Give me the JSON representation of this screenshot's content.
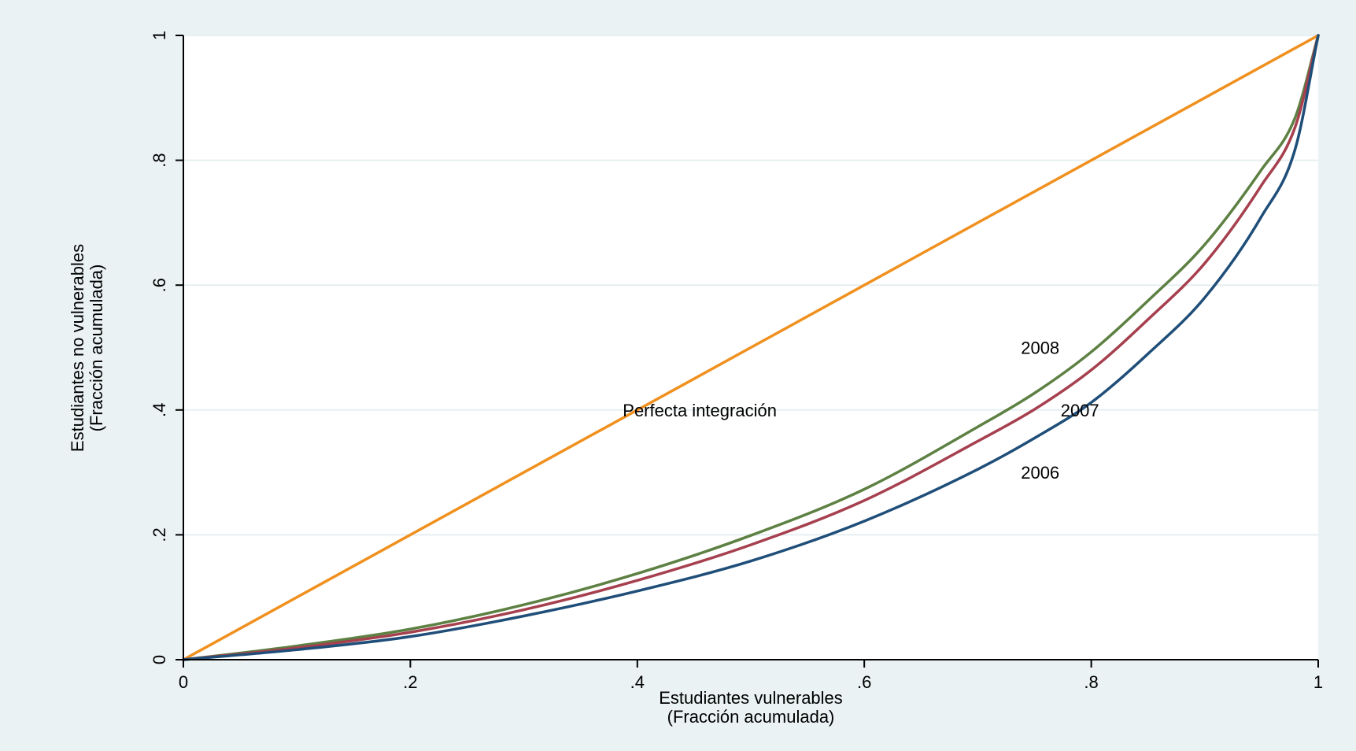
{
  "chart_data": {
    "type": "line",
    "xlabel": [
      "Estudiantes vulnerables",
      "(Fracción acumulada)"
    ],
    "ylabel": [
      "Estudiantes no vulnerables",
      "(Fracción acumulada)"
    ],
    "xlim": [
      0,
      1
    ],
    "ylim": [
      0,
      1
    ],
    "x_ticks": [
      {
        "value": 0,
        "label": "0"
      },
      {
        "value": 0.2,
        "label": ".2"
      },
      {
        "value": 0.4,
        "label": ".4"
      },
      {
        "value": 0.6,
        "label": ".6"
      },
      {
        "value": 0.8,
        "label": ".8"
      },
      {
        "value": 1,
        "label": "1"
      }
    ],
    "y_ticks": [
      {
        "value": 0,
        "label": "0"
      },
      {
        "value": 0.2,
        "label": ".2"
      },
      {
        "value": 0.4,
        "label": ".4"
      },
      {
        "value": 0.6,
        "label": ".6"
      },
      {
        "value": 0.8,
        "label": ".8"
      },
      {
        "value": 1,
        "label": "1"
      }
    ],
    "grid": "horizontal",
    "colors": {
      "background": "#eaf2f3",
      "plot_background": "#ffffff",
      "grid": "#e6eff1",
      "perfect": "#f0901e",
      "2008": "#5d8043",
      "2007": "#a6404f",
      "2006": "#1f4e79"
    },
    "series": [
      {
        "name": "Perfecta integración",
        "color_key": "perfect",
        "x": [
          0,
          1
        ],
        "y": [
          0,
          1
        ]
      },
      {
        "name": "2008",
        "color_key": "2008",
        "x": [
          0,
          0.1,
          0.2,
          0.3,
          0.4,
          0.5,
          0.6,
          0.7,
          0.75,
          0.8,
          0.85,
          0.9,
          0.95,
          0.98,
          1.0
        ],
        "y": [
          0,
          0.022,
          0.049,
          0.088,
          0.138,
          0.199,
          0.273,
          0.373,
          0.427,
          0.493,
          0.575,
          0.665,
          0.785,
          0.87,
          1.0
        ]
      },
      {
        "name": "2007",
        "color_key": "2007",
        "x": [
          0,
          0.1,
          0.2,
          0.3,
          0.4,
          0.5,
          0.6,
          0.7,
          0.75,
          0.8,
          0.85,
          0.9,
          0.95,
          0.98,
          1.0
        ],
        "y": [
          0,
          0.019,
          0.044,
          0.08,
          0.127,
          0.184,
          0.255,
          0.35,
          0.401,
          0.464,
          0.545,
          0.635,
          0.76,
          0.855,
          1.0
        ]
      },
      {
        "name": "2006",
        "color_key": "2006",
        "x": [
          0,
          0.1,
          0.2,
          0.3,
          0.4,
          0.5,
          0.6,
          0.7,
          0.75,
          0.8,
          0.85,
          0.9,
          0.95,
          0.98,
          1.0
        ],
        "y": [
          0,
          0.016,
          0.037,
          0.07,
          0.11,
          0.158,
          0.222,
          0.305,
          0.355,
          0.412,
          0.49,
          0.58,
          0.71,
          0.82,
          1.0
        ]
      }
    ],
    "annotations": [
      {
        "text": "Perfecta integración",
        "x": 0.455,
        "y": 0.4
      },
      {
        "text": "2008",
        "x": 0.755,
        "y": 0.5
      },
      {
        "text": "2007",
        "x": 0.79,
        "y": 0.4
      },
      {
        "text": "2006",
        "x": 0.755,
        "y": 0.3
      }
    ]
  }
}
